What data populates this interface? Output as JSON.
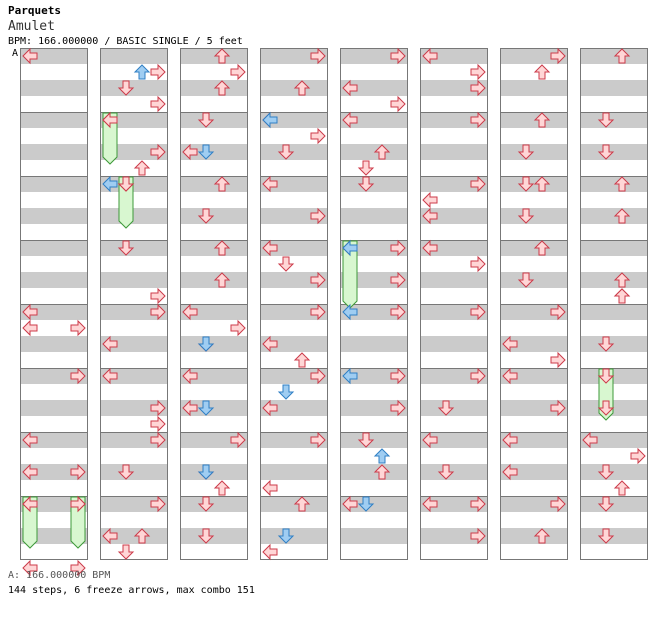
{
  "header": {
    "artist": "Parquets",
    "title": "Amulet",
    "info": "BPM: 166.000000 / BASIC SINGLE / 5 feet",
    "bpm_marker": "A"
  },
  "footer": {
    "bpm_line": "A: 166.000000 BPM",
    "stats": "144 steps, 6 freeze arrows, max combo 151"
  },
  "colors": {
    "band_gray": "#cbcbcb",
    "red_fill": "#ffd6d6",
    "red_stroke": "#cc3b4a",
    "blue_fill": "#9fcdf2",
    "blue_stroke": "#2f7fc4",
    "freeze_fill": "#d8f7d0",
    "freeze_stroke": "#3e9a3a"
  },
  "chart_data": {
    "type": "step-chart",
    "columns_count": 8,
    "measures_per_column": 8,
    "lanes": [
      "left",
      "down",
      "up",
      "right"
    ],
    "steps": [
      {
        "m": 0,
        "b": 0,
        "d": "left"
      },
      {
        "m": 4,
        "b": 0,
        "d": "left"
      },
      {
        "m": 4,
        "b": 1,
        "d": "right"
      },
      {
        "m": 4,
        "b": 1,
        "d": "left"
      },
      {
        "m": 5,
        "b": 0,
        "d": "right"
      },
      {
        "m": 6,
        "b": 0,
        "d": "left"
      },
      {
        "m": 6,
        "b": 2,
        "d": "right"
      },
      {
        "m": 6,
        "b": 2,
        "d": "left"
      },
      {
        "m": 7,
        "b": 0,
        "d": "left"
      },
      {
        "m": 7,
        "b": 0,
        "d": "right"
      },
      {
        "m": 7,
        "b": 4,
        "d": "left"
      },
      {
        "m": 7,
        "b": 4,
        "d": "right"
      },
      {
        "m": 8,
        "b": 1,
        "d": "right"
      },
      {
        "m": 8,
        "b": 2,
        "d": "down"
      },
      {
        "m": 8,
        "b": 3,
        "d": "right"
      },
      {
        "m": 9,
        "b": 0,
        "d": "left"
      },
      {
        "m": 9,
        "b": 2,
        "d": "right"
      },
      {
        "m": 9,
        "b": 3,
        "d": "up"
      },
      {
        "m": 10,
        "b": 0,
        "d": "down"
      },
      {
        "m": 11,
        "b": 0,
        "d": "down"
      },
      {
        "m": 11,
        "b": 3,
        "d": "right"
      },
      {
        "m": 12,
        "b": 0,
        "d": "right"
      },
      {
        "m": 12,
        "b": 2,
        "d": "left"
      },
      {
        "m": 13,
        "b": 0,
        "d": "left"
      },
      {
        "m": 13,
        "b": 2,
        "d": "right"
      },
      {
        "m": 13,
        "b": 3,
        "d": "right"
      },
      {
        "m": 14,
        "b": 0,
        "d": "right"
      },
      {
        "m": 14,
        "b": 2,
        "d": "down"
      },
      {
        "m": 15,
        "b": 0,
        "d": "right"
      },
      {
        "m": 15,
        "b": 2,
        "d": "up"
      },
      {
        "m": 15,
        "b": 2,
        "d": "left"
      },
      {
        "m": 15,
        "b": 3,
        "d": "down"
      },
      {
        "m": 16,
        "b": 0,
        "d": "up"
      },
      {
        "m": 16,
        "b": 1,
        "d": "right"
      },
      {
        "m": 16,
        "b": 2,
        "d": "up"
      },
      {
        "m": 17,
        "b": 0,
        "d": "down"
      },
      {
        "m": 17,
        "b": 2,
        "d": "left"
      },
      {
        "m": 18,
        "b": 0,
        "d": "up"
      },
      {
        "m": 18,
        "b": 2,
        "d": "down"
      },
      {
        "m": 19,
        "b": 0,
        "d": "up"
      },
      {
        "m": 19,
        "b": 2,
        "d": "up"
      },
      {
        "m": 20,
        "b": 0,
        "d": "left"
      },
      {
        "m": 20,
        "b": 1,
        "d": "right"
      },
      {
        "m": 20,
        "b": 2,
        "d": "down"
      },
      {
        "m": 21,
        "b": 0,
        "d": "left"
      },
      {
        "m": 21,
        "b": 2,
        "d": "left"
      },
      {
        "m": 22,
        "b": 0,
        "d": "right"
      },
      {
        "m": 22,
        "b": 2,
        "d": "down"
      },
      {
        "m": 22,
        "b": 3,
        "d": "up"
      },
      {
        "m": 23,
        "b": 0,
        "d": "down"
      },
      {
        "m": 23,
        "b": 2,
        "d": "down"
      },
      {
        "m": 24,
        "b": 0,
        "d": "right"
      },
      {
        "m": 24,
        "b": 2,
        "d": "up"
      },
      {
        "m": 25,
        "b": 0,
        "d": "left"
      },
      {
        "m": 25,
        "b": 1,
        "d": "right"
      },
      {
        "m": 25,
        "b": 2,
        "d": "down"
      },
      {
        "m": 26,
        "b": 0,
        "d": "left"
      },
      {
        "m": 26,
        "b": 2,
        "d": "right"
      },
      {
        "m": 27,
        "b": 0,
        "d": "left"
      },
      {
        "m": 27,
        "b": 1,
        "d": "down"
      },
      {
        "m": 27,
        "b": 2,
        "d": "right"
      },
      {
        "m": 28,
        "b": 0,
        "d": "right"
      },
      {
        "m": 28,
        "b": 2,
        "d": "left"
      },
      {
        "m": 28,
        "b": 3,
        "d": "up"
      },
      {
        "m": 29,
        "b": 0,
        "d": "right"
      },
      {
        "m": 29,
        "b": 2,
        "d": "left"
      },
      {
        "m": 30,
        "b": 0,
        "d": "right"
      },
      {
        "m": 30,
        "b": 3,
        "d": "left"
      },
      {
        "m": 31,
        "b": 0,
        "d": "up"
      },
      {
        "m": 31,
        "b": 3,
        "d": "left"
      },
      {
        "m": 32,
        "b": 0,
        "d": "right"
      },
      {
        "m": 32,
        "b": 2,
        "d": "left"
      },
      {
        "m": 32,
        "b": 3,
        "d": "right"
      },
      {
        "m": 33,
        "b": 0,
        "d": "left"
      },
      {
        "m": 33,
        "b": 2,
        "d": "up"
      },
      {
        "m": 33,
        "b": 3,
        "d": "down"
      },
      {
        "m": 34,
        "b": 0,
        "d": "down"
      },
      {
        "m": 35,
        "b": 0,
        "d": "right"
      },
      {
        "m": 35,
        "b": 2,
        "d": "right"
      },
      {
        "m": 36,
        "b": 0,
        "d": "right"
      },
      {
        "m": 37,
        "b": 0,
        "d": "right"
      },
      {
        "m": 37,
        "b": 2,
        "d": "right"
      },
      {
        "m": 38,
        "b": 0,
        "d": "down"
      },
      {
        "m": 38,
        "b": 2,
        "d": "up"
      },
      {
        "m": 39,
        "b": 0,
        "d": "left"
      },
      {
        "m": 40,
        "b": 0,
        "d": "left"
      },
      {
        "m": 40,
        "b": 1,
        "d": "right"
      },
      {
        "m": 40,
        "b": 2,
        "d": "right"
      },
      {
        "m": 41,
        "b": 0,
        "d": "right"
      },
      {
        "m": 42,
        "b": 0,
        "d": "right"
      },
      {
        "m": 42,
        "b": 1,
        "d": "left"
      },
      {
        "m": 42,
        "b": 2,
        "d": "left"
      },
      {
        "m": 43,
        "b": 0,
        "d": "left"
      },
      {
        "m": 43,
        "b": 1,
        "d": "right"
      },
      {
        "m": 44,
        "b": 0,
        "d": "right"
      },
      {
        "m": 45,
        "b": 0,
        "d": "right"
      },
      {
        "m": 45,
        "b": 2,
        "d": "down"
      },
      {
        "m": 46,
        "b": 0,
        "d": "left"
      },
      {
        "m": 46,
        "b": 2,
        "d": "down"
      },
      {
        "m": 47,
        "b": 0,
        "d": "left"
      },
      {
        "m": 47,
        "b": 0,
        "d": "right"
      },
      {
        "m": 47,
        "b": 2,
        "d": "right"
      },
      {
        "m": 48,
        "b": 0,
        "d": "right"
      },
      {
        "m": 48,
        "b": 1,
        "d": "up"
      },
      {
        "m": 49,
        "b": 0,
        "d": "up"
      },
      {
        "m": 49,
        "b": 2,
        "d": "down"
      },
      {
        "m": 50,
        "b": 0,
        "d": "down"
      },
      {
        "m": 50,
        "b": 0,
        "d": "up"
      },
      {
        "m": 50,
        "b": 2,
        "d": "down"
      },
      {
        "m": 51,
        "b": 0,
        "d": "up"
      },
      {
        "m": 51,
        "b": 2,
        "d": "down"
      },
      {
        "m": 52,
        "b": 0,
        "d": "right"
      },
      {
        "m": 52,
        "b": 2,
        "d": "left"
      },
      {
        "m": 52,
        "b": 3,
        "d": "right"
      },
      {
        "m": 53,
        "b": 0,
        "d": "left"
      },
      {
        "m": 53,
        "b": 2,
        "d": "right"
      },
      {
        "m": 54,
        "b": 0,
        "d": "left"
      },
      {
        "m": 54,
        "b": 2,
        "d": "left"
      },
      {
        "m": 55,
        "b": 0,
        "d": "right"
      },
      {
        "m": 55,
        "b": 2,
        "d": "up"
      },
      {
        "m": 56,
        "b": 0,
        "d": "up"
      },
      {
        "m": 57,
        "b": 0,
        "d": "down"
      },
      {
        "m": 57,
        "b": 2,
        "d": "down"
      },
      {
        "m": 58,
        "b": 0,
        "d": "up"
      },
      {
        "m": 58,
        "b": 2,
        "d": "up"
      },
      {
        "m": 59,
        "b": 2,
        "d": "up"
      },
      {
        "m": 59,
        "b": 3,
        "d": "up"
      },
      {
        "m": 59,
        "b": 3,
        "d": "up"
      },
      {
        "m": 60,
        "b": 2,
        "d": "down"
      },
      {
        "m": 61,
        "b": 2,
        "d": "down"
      },
      {
        "m": 62,
        "b": 0,
        "d": "left"
      },
      {
        "m": 62,
        "b": 1,
        "d": "right"
      },
      {
        "m": 62,
        "b": 2,
        "d": "down"
      },
      {
        "m": 62,
        "b": 3,
        "d": "up"
      },
      {
        "m": 63,
        "b": 0,
        "d": "down"
      },
      {
        "m": 63,
        "b": 2,
        "d": "down"
      }
    ],
    "blue_steps": [
      {
        "m": 8,
        "b": 1,
        "d": "up"
      },
      {
        "m": 10,
        "b": 0,
        "d": "left"
      },
      {
        "m": 17,
        "b": 2,
        "d": "down"
      },
      {
        "m": 20,
        "b": 2,
        "d": "down"
      },
      {
        "m": 21,
        "b": 2,
        "d": "down"
      },
      {
        "m": 22,
        "b": 2,
        "d": "down"
      },
      {
        "m": 25,
        "b": 0,
        "d": "left"
      },
      {
        "m": 29,
        "b": 1,
        "d": "down"
      },
      {
        "m": 31,
        "b": 2,
        "d": "down"
      },
      {
        "m": 35,
        "b": 0,
        "d": "left"
      },
      {
        "m": 36,
        "b": 0,
        "d": "left"
      },
      {
        "m": 37,
        "b": 0,
        "d": "left"
      },
      {
        "m": 38,
        "b": 1,
        "d": "up"
      },
      {
        "m": 39,
        "b": 0,
        "d": "down"
      }
    ],
    "freezes": [
      {
        "col": 1,
        "measure": 1,
        "lane": "left",
        "start_beat": 0.0,
        "len_beats": 1.5
      },
      {
        "col": 1,
        "measure": 2,
        "lane": "down",
        "start_beat": 0.0,
        "len_beats": 1.5
      },
      {
        "col": 4,
        "measure": 3,
        "lane": "left",
        "start_beat": 0.0,
        "len_beats": 2.0
      },
      {
        "col": 0,
        "measure": 7,
        "lane": "left",
        "start_beat": 0.0,
        "len_beats": 1.5
      },
      {
        "col": 0,
        "measure": 7,
        "lane": "right",
        "start_beat": 0.0,
        "len_beats": 1.5
      },
      {
        "col": 7,
        "measure": 5,
        "lane": "down",
        "start_beat": 0.0,
        "len_beats": 1.5
      }
    ]
  }
}
